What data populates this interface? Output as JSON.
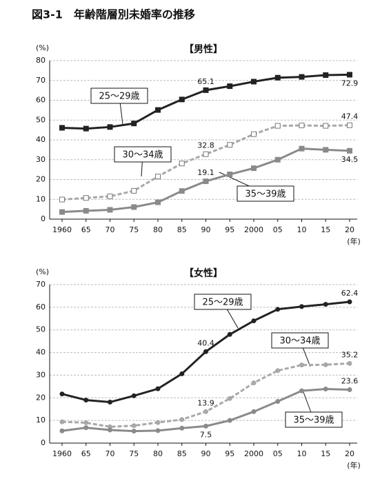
{
  "title": "図3-1　年齢階層別未婚率の推移",
  "chart_data": [
    {
      "type": "line",
      "title": "【男性】",
      "y_label": "(%)",
      "x_label": "(年)",
      "categories": [
        "1960",
        "65",
        "70",
        "75",
        "80",
        "85",
        "90",
        "95",
        "2000",
        "05",
        "10",
        "15",
        "20"
      ],
      "ylim": [
        0,
        80
      ],
      "yticks": [
        0,
        10,
        20,
        30,
        40,
        50,
        60,
        70,
        80
      ],
      "grid": true,
      "series": [
        {
          "name": "25～29歳",
          "color": "#222222",
          "line_style": "solid",
          "marker": "filled-square",
          "values": [
            46.1,
            45.7,
            46.5,
            48.3,
            55.1,
            60.4,
            65.1,
            67.1,
            69.4,
            71.4,
            71.8,
            72.7,
            72.9
          ],
          "value_labels": [
            null,
            null,
            null,
            null,
            null,
            null,
            "65.1",
            null,
            null,
            null,
            null,
            null,
            "72.9"
          ]
        },
        {
          "name": "30～34歳",
          "color": "#a8a8a8",
          "line_style": "dashed",
          "marker": "open-square",
          "values": [
            9.9,
            10.7,
            11.5,
            14.3,
            21.5,
            28.1,
            32.8,
            37.5,
            42.9,
            47.1,
            47.3,
            47.1,
            47.4
          ],
          "value_labels": [
            null,
            null,
            null,
            null,
            null,
            null,
            "32.8",
            null,
            null,
            null,
            null,
            null,
            "47.4"
          ]
        },
        {
          "name": "35～39歳",
          "color": "#8a8a8a",
          "line_style": "solid",
          "marker": "filled-square",
          "values": [
            3.6,
            4.2,
            4.7,
            6.1,
            8.5,
            14.2,
            19.1,
            22.6,
            25.7,
            30.0,
            35.6,
            35.0,
            34.5
          ],
          "value_labels": [
            null,
            null,
            null,
            null,
            null,
            null,
            "19.1",
            null,
            null,
            null,
            null,
            null,
            "34.5"
          ]
        }
      ]
    },
    {
      "type": "line",
      "title": "【女性】",
      "y_label": "(%)",
      "x_label": "(年)",
      "categories": [
        "1960",
        "65",
        "70",
        "75",
        "80",
        "85",
        "90",
        "95",
        "2000",
        "05",
        "10",
        "15",
        "20"
      ],
      "ylim": [
        0,
        70
      ],
      "yticks": [
        0,
        10,
        20,
        30,
        40,
        50,
        60,
        70
      ],
      "grid": true,
      "series": [
        {
          "name": "25～29歳",
          "color": "#222222",
          "line_style": "solid",
          "marker": "filled-circle",
          "values": [
            21.7,
            19.0,
            18.1,
            20.9,
            24.0,
            30.6,
            40.4,
            48.0,
            54.0,
            59.1,
            60.3,
            61.3,
            62.4
          ],
          "value_labels": [
            null,
            null,
            null,
            null,
            null,
            null,
            "40.4",
            null,
            null,
            null,
            null,
            null,
            "62.4"
          ]
        },
        {
          "name": "30～34歳",
          "color": "#a8a8a8",
          "line_style": "dashed",
          "marker": "filled-circle",
          "values": [
            9.4,
            9.0,
            7.2,
            7.7,
            9.1,
            10.4,
            13.9,
            19.7,
            26.6,
            32.0,
            34.5,
            34.6,
            35.2
          ],
          "value_labels": [
            null,
            null,
            null,
            null,
            null,
            null,
            "13.9",
            null,
            null,
            null,
            null,
            null,
            "35.2"
          ]
        },
        {
          "name": "35～39歳",
          "color": "#8a8a8a",
          "line_style": "solid",
          "marker": "filled-circle",
          "values": [
            5.4,
            6.8,
            5.8,
            5.3,
            5.5,
            6.6,
            7.5,
            10.0,
            13.9,
            18.4,
            23.1,
            23.9,
            23.6
          ],
          "value_labels": [
            null,
            null,
            null,
            null,
            null,
            null,
            "7.5",
            null,
            null,
            null,
            null,
            null,
            "23.6"
          ]
        }
      ]
    }
  ]
}
